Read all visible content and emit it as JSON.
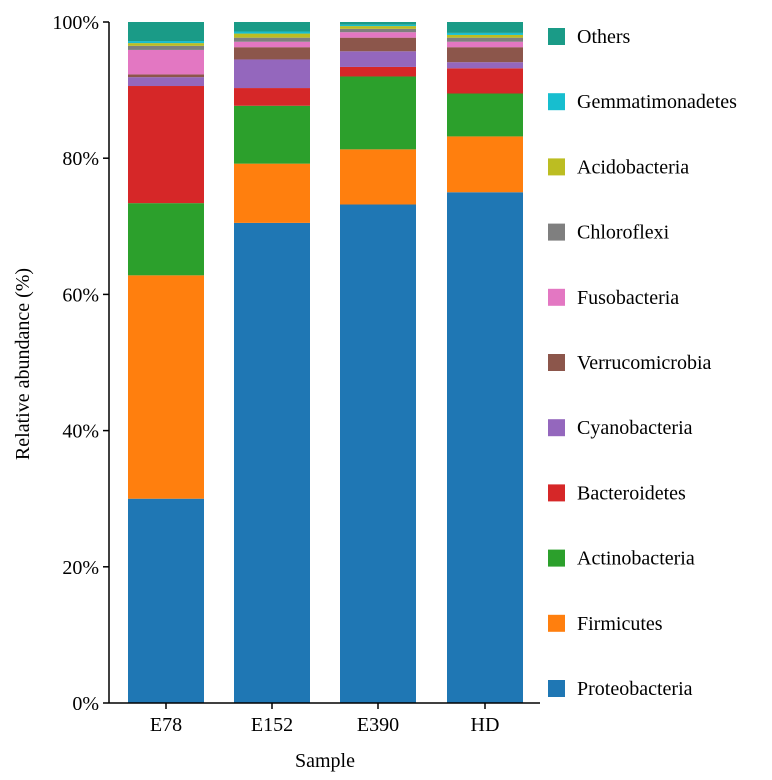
{
  "chart_data": {
    "type": "bar",
    "stacked": true,
    "xlabel": "Sample",
    "ylabel": "Relative abundance (%)",
    "ylim": [
      0,
      100
    ],
    "yticks": [
      "0%",
      "20%",
      "40%",
      "60%",
      "80%",
      "100%"
    ],
    "categories": [
      "E78",
      "E152",
      "E390",
      "HD"
    ],
    "legend_position": "right",
    "series": [
      {
        "name": "Proteobacteria",
        "color": "#1f77b4",
        "values": [
          30.0,
          70.5,
          73.2,
          75.0
        ]
      },
      {
        "name": "Firmicutes",
        "color": "#ff7f0e",
        "values": [
          32.8,
          8.7,
          8.1,
          8.2
        ]
      },
      {
        "name": "Actinobacteria",
        "color": "#2ca02c",
        "values": [
          10.6,
          8.5,
          10.7,
          6.3
        ]
      },
      {
        "name": "Bacteroidetes",
        "color": "#d62728",
        "values": [
          17.2,
          2.6,
          1.4,
          3.7
        ]
      },
      {
        "name": "Cyanobacteria",
        "color": "#9467bd",
        "values": [
          1.3,
          4.2,
          2.3,
          0.9
        ]
      },
      {
        "name": "Verrucomicrobia",
        "color": "#8c564b",
        "values": [
          0.4,
          1.8,
          2.0,
          2.2
        ]
      },
      {
        "name": "Fusobacteria",
        "color": "#e377c2",
        "values": [
          3.6,
          0.8,
          0.8,
          0.8
        ]
      },
      {
        "name": "Chloroflexi",
        "color": "#7f7f7f",
        "values": [
          0.6,
          0.6,
          0.5,
          0.6
        ]
      },
      {
        "name": "Acidobacteria",
        "color": "#bcbd22",
        "values": [
          0.4,
          0.6,
          0.4,
          0.4
        ]
      },
      {
        "name": "Gemmatimonadetes",
        "color": "#17becf",
        "values": [
          0.3,
          0.3,
          0.2,
          0.3
        ]
      },
      {
        "name": "Others",
        "color": "#1a9b87",
        "values": [
          2.8,
          1.4,
          0.4,
          1.6
        ]
      }
    ]
  }
}
